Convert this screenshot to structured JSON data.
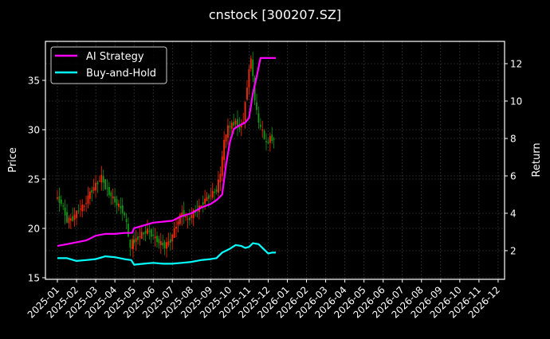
{
  "title": "cnstock [300207.SZ]",
  "colors": {
    "background": "#000000",
    "ai_strategy": "#ff00ff",
    "buy_and_hold": "#00ffff",
    "candle_up": "#ff2a00",
    "candle_down": "#119a11",
    "grid": "#444444",
    "axis": "#ffffff"
  },
  "chart_data": {
    "type": "line",
    "title": "cnstock [300207.SZ]",
    "xlabel": "",
    "ylabel": "Price",
    "y2label": "Return",
    "x_ticks": [
      "2025-01",
      "2025-02",
      "2025-03",
      "2025-04",
      "2025-05",
      "2025-06",
      "2025-07",
      "2025-08",
      "2025-09",
      "2025-10",
      "2025-11",
      "2025-12",
      "2026-01",
      "2026-02",
      "2026-03",
      "2026-04",
      "2026-05",
      "2026-06",
      "2026-07",
      "2026-08",
      "2026-09",
      "2026-10",
      "2026-11",
      "2026-12"
    ],
    "y_ticks": [
      15,
      20,
      25,
      30,
      35
    ],
    "y2_ticks": [
      2,
      4,
      6,
      8,
      10,
      12
    ],
    "ylim": [
      14.8,
      38.8
    ],
    "y2lim": [
      0.5,
      13.2
    ],
    "grid": true,
    "legend": {
      "position": "upper left",
      "entries": [
        "AI Strategy",
        "Buy-and-Hold"
      ]
    },
    "price_candles": {
      "axis": "left",
      "note": "OHLC candlesticks (red = up, green = down), approximate closes by position",
      "x": [
        0.0,
        0.3,
        0.6,
        0.9,
        1.2,
        1.5,
        1.8,
        2.1,
        2.4,
        2.6,
        2.9,
        3.2,
        3.5,
        3.7,
        3.9,
        4.0,
        4.2,
        4.5,
        4.8,
        5.1,
        5.4,
        5.7,
        6.0,
        6.3,
        6.6,
        6.9,
        7.2,
        7.5,
        7.8,
        8.1,
        8.4,
        8.6,
        8.8,
        9.0,
        9.2,
        9.4,
        9.6,
        9.8,
        10.0,
        10.2,
        10.4,
        10.6,
        10.8,
        11.0,
        11.2,
        11.4
      ],
      "close": [
        23.2,
        22.6,
        20.8,
        21.0,
        21.9,
        22.3,
        23.6,
        24.4,
        25.2,
        24.2,
        23.3,
        22.5,
        21.8,
        20.5,
        17.8,
        18.6,
        18.9,
        19.4,
        19.8,
        19.2,
        18.6,
        18.2,
        18.8,
        20.3,
        21.6,
        20.8,
        21.6,
        22.1,
        22.9,
        23.4,
        23.9,
        25.5,
        28.8,
        30.2,
        30.5,
        30.8,
        30.1,
        31.0,
        34.5,
        37.4,
        33.0,
        30.6,
        29.8,
        28.5,
        29.2,
        29.0
      ]
    },
    "series": [
      {
        "name": "AI Strategy",
        "axis": "right",
        "color": "#ff00ff",
        "x": [
          0.0,
          0.5,
          1.0,
          1.5,
          2.0,
          2.5,
          3.0,
          3.5,
          3.9,
          4.0,
          4.5,
          5.0,
          5.5,
          6.0,
          6.5,
          7.0,
          7.5,
          8.0,
          8.3,
          8.6,
          8.8,
          9.0,
          9.2,
          9.5,
          9.8,
          10.0,
          10.2,
          10.4,
          10.6,
          10.8,
          11.0,
          11.2,
          11.4
        ],
        "values": [
          2.25,
          2.35,
          2.45,
          2.55,
          2.8,
          2.9,
          2.9,
          2.95,
          2.95,
          3.2,
          3.35,
          3.5,
          3.55,
          3.6,
          3.85,
          4.0,
          4.3,
          4.5,
          4.7,
          5.0,
          6.6,
          7.8,
          8.5,
          8.7,
          8.85,
          9.1,
          10.4,
          11.3,
          12.3,
          12.3,
          12.3,
          12.3,
          12.3
        ]
      },
      {
        "name": "Buy-and-Hold",
        "axis": "right",
        "color": "#00ffff",
        "x": [
          0.0,
          0.5,
          1.0,
          1.5,
          2.0,
          2.5,
          3.0,
          3.5,
          3.85,
          4.0,
          4.5,
          5.0,
          5.5,
          6.0,
          6.5,
          7.0,
          7.5,
          8.0,
          8.3,
          8.6,
          8.8,
          9.0,
          9.3,
          9.6,
          9.8,
          10.0,
          10.2,
          10.5,
          10.8,
          11.0,
          11.2,
          11.4
        ],
        "values": [
          1.6,
          1.6,
          1.45,
          1.5,
          1.55,
          1.7,
          1.65,
          1.55,
          1.5,
          1.25,
          1.3,
          1.35,
          1.3,
          1.3,
          1.35,
          1.4,
          1.5,
          1.55,
          1.6,
          1.9,
          2.0,
          2.1,
          2.3,
          2.25,
          2.15,
          2.2,
          2.4,
          2.35,
          2.05,
          1.85,
          1.9,
          1.9
        ]
      }
    ]
  }
}
